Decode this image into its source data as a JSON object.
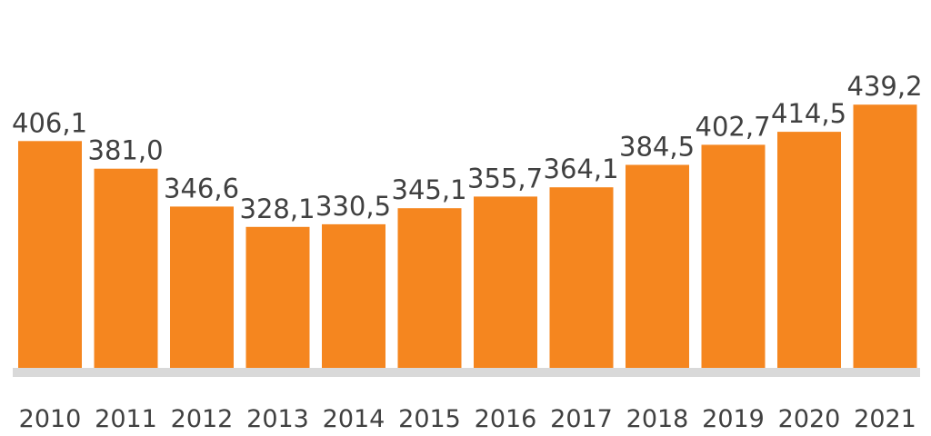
{
  "chart_data": {
    "type": "bar",
    "title": "",
    "xlabel": "",
    "ylabel": "",
    "categories": [
      "2010",
      "2011",
      "2012",
      "2013",
      "2014",
      "2015",
      "2016",
      "2017",
      "2018",
      "2019",
      "2020",
      "2021"
    ],
    "values": [
      406.1,
      381.0,
      346.6,
      328.1,
      330.5,
      345.1,
      355.7,
      364.1,
      384.5,
      402.7,
      414.5,
      439.2
    ],
    "value_labels": [
      "406,1",
      "381,0",
      "346,6",
      "328,1",
      "330,5",
      "345,1",
      "355,7",
      "364,1",
      "384,5",
      "402,7",
      "414,5",
      "439,2"
    ],
    "ylim": [
      200,
      450
    ],
    "grid": false,
    "legend": "none",
    "colors": {
      "bar": "#f5861f",
      "baseline": "#d9d9d9",
      "text": "#404040"
    }
  }
}
